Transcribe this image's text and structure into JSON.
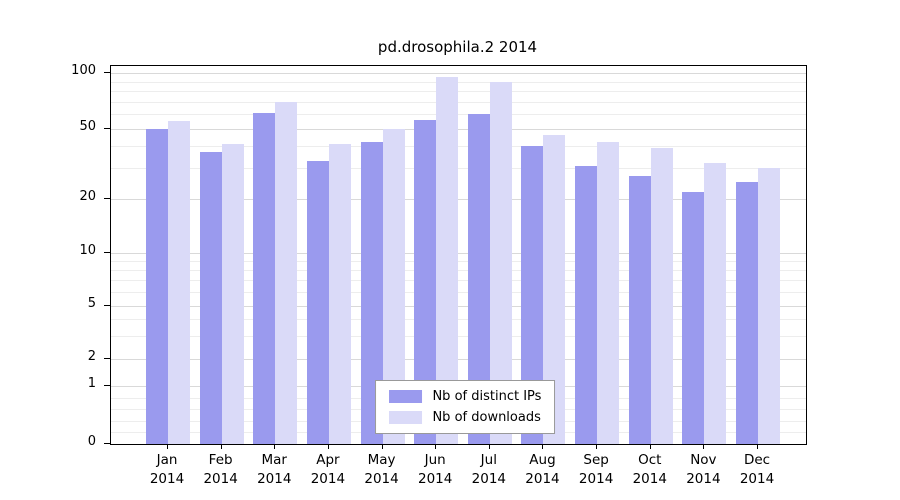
{
  "title": "pd.drosophila.2 2014",
  "chart_data": {
    "type": "bar",
    "title": "pd.drosophila.2 2014",
    "categories": [
      "Jan",
      "Feb",
      "Mar",
      "Apr",
      "May",
      "Jun",
      "Jul",
      "Aug",
      "Sep",
      "Oct",
      "Nov",
      "Dec"
    ],
    "year": "2014",
    "series": [
      {
        "name": "Nb of distinct IPs",
        "color": "#9a9aee",
        "values": [
          50,
          37,
          61,
          33,
          42,
          56,
          60,
          40,
          31,
          27,
          22,
          25
        ]
      },
      {
        "name": "Nb of downloads",
        "color": "#dadaf8",
        "values": [
          55,
          41,
          70,
          41,
          50,
          95,
          90,
          46,
          42,
          39,
          32,
          30
        ]
      }
    ],
    "yticks": [
      100,
      50,
      20,
      10,
      5,
      2,
      1,
      0
    ],
    "xlabel": "",
    "ylabel": "",
    "scale": "log",
    "grid": true,
    "legend_position": "bottom-center"
  },
  "colors": {
    "bar_distinct_ips": "#9a9aee",
    "bar_downloads": "#dadaf8",
    "grid_major": "#d9d9d9",
    "grid_minor": "#ededed",
    "axis": "#000000",
    "background": "#ffffff"
  }
}
